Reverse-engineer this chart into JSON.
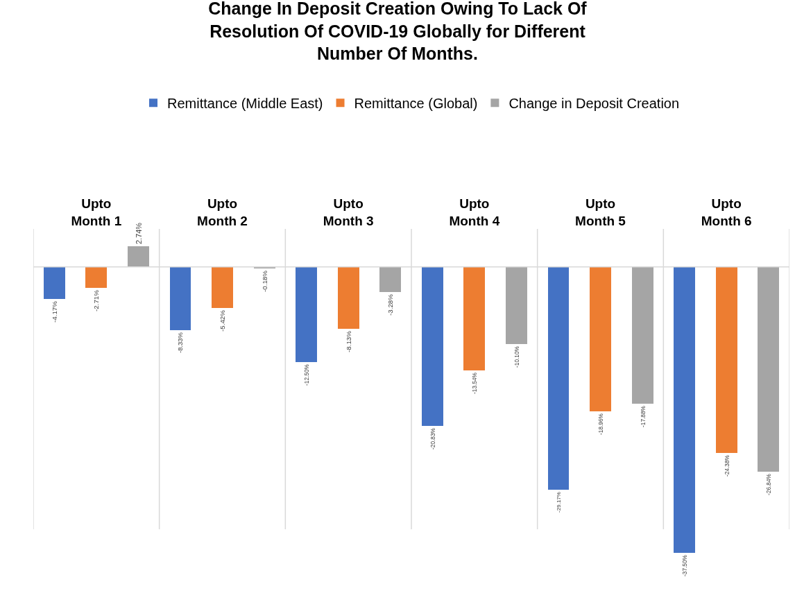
{
  "chart_data": {
    "type": "bar",
    "title": "Change In Deposit Creation Owing To Lack Of Resolution Of COVID-19 Globally for Different Number Of Months.",
    "categories": [
      "Upto Month 1",
      "Upto Month 2",
      "Upto Month 3",
      "Upto Month 4",
      "Upto Month 5",
      "Upto Month 6"
    ],
    "series": [
      {
        "name": "Remittance (Middle East)",
        "color": "#4472c4",
        "values": [
          -4.17,
          -8.33,
          -12.5,
          -20.83,
          -29.17,
          -37.5
        ],
        "value_labels": [
          "-4.17%",
          "-8.33%",
          "-12.50%",
          "-20.83%",
          "-29.17%",
          "-37.50%"
        ]
      },
      {
        "name": "Remittance (Global)",
        "color": "#ed7d31",
        "values": [
          -2.71,
          -5.42,
          -8.13,
          -13.54,
          -18.96,
          -24.38
        ],
        "value_labels": [
          "-2.71%",
          "-5.42%",
          "-8.13%",
          "-13.54%",
          "-18.96%",
          "-24.38%"
        ]
      },
      {
        "name": "Change in Deposit Creation",
        "color": "#a5a5a5",
        "values": [
          2.74,
          -0.18,
          -3.28,
          -10.1,
          -17.88,
          -26.84
        ],
        "value_labels": [
          "2.74%",
          "-0.18%",
          "-3.28%",
          "-10.10%",
          "-17.88%",
          "-26.84%"
        ]
      }
    ],
    "grid": "x",
    "legend": "top"
  }
}
